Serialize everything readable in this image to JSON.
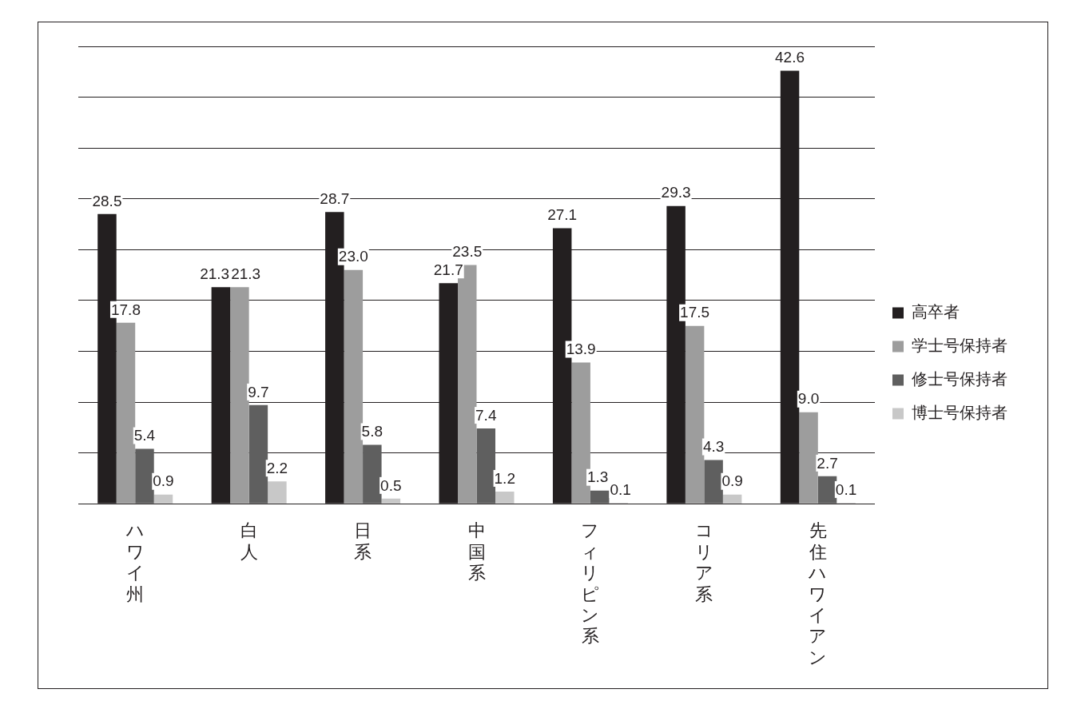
{
  "chart_data": {
    "type": "bar",
    "categories": [
      "ハワイ州",
      "白人",
      "日系",
      "中国系",
      "フィリピン系",
      "コリア系",
      "先住ハワイアン"
    ],
    "series": [
      {
        "name": "高卒者",
        "color": "#231f20",
        "values": [
          28.5,
          21.3,
          28.7,
          21.7,
          27.1,
          29.3,
          42.6
        ],
        "value_labels": [
          "28.5",
          "21.3",
          "28.7",
          "21.7",
          "27.1",
          "29.3",
          "42.6"
        ]
      },
      {
        "name": "学士号保持者",
        "color": "#9d9d9d",
        "values": [
          17.8,
          21.3,
          23.0,
          23.5,
          13.9,
          17.5,
          9.0
        ],
        "value_labels": [
          "17.8",
          "21.3",
          "23.0",
          "23.5",
          "13.9",
          "17.5",
          "9.0"
        ]
      },
      {
        "name": "修士号保持者",
        "color": "#5f5f5f",
        "values": [
          5.4,
          9.7,
          5.8,
          7.4,
          1.3,
          4.3,
          2.7
        ],
        "value_labels": [
          "5.4",
          "9.7",
          "5.8",
          "7.4",
          "1.3",
          "4.3",
          "2.7"
        ]
      },
      {
        "name": "博士号保持者",
        "color": "#c8c8c8",
        "values": [
          0.9,
          2.2,
          0.5,
          1.2,
          0.1,
          0.9,
          0.1
        ],
        "value_labels": [
          "0.9",
          "2.2",
          "0.5",
          "1.2",
          "0.1",
          "0.9",
          "0.1"
        ]
      }
    ],
    "ylim": [
      0,
      45
    ],
    "yticks": [
      {
        "value": 0,
        "label": null
      },
      {
        "value": 5,
        "label": null
      },
      {
        "value": 10,
        "label": null
      },
      {
        "value": 15,
        "label": null
      },
      {
        "value": 20,
        "label": null
      },
      {
        "value": 25,
        "label": null
      },
      {
        "value": 30,
        "label": null
      },
      {
        "value": 35,
        "label": null
      },
      {
        "value": 40,
        "label": null
      },
      {
        "value": 45,
        "label": null
      }
    ],
    "tick_labels": "x",
    "grid": "y",
    "legend": "right"
  }
}
